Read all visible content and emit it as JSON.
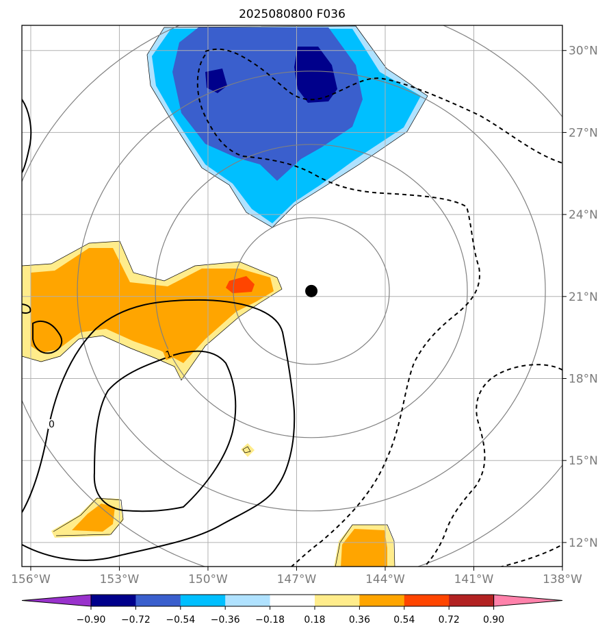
{
  "chart_data": {
    "type": "contour_map",
    "title": "2025080800 F036",
    "x_ticks": [
      "156°W",
      "153°W",
      "150°W",
      "147°W",
      "144°W",
      "141°W",
      "138°W"
    ],
    "y_ticks": [
      "30°N",
      "27°N",
      "24°N",
      "21°N",
      "18°N",
      "15°N",
      "12°N"
    ],
    "center_marker": {
      "lon": -146.5,
      "lat": 21.2
    },
    "range_rings": 4,
    "colorbar": {
      "ticks": [
        "−0.90",
        "−0.72",
        "−0.54",
        "−0.36",
        "−0.18",
        "0.18",
        "0.36",
        "0.54",
        "0.72",
        "0.90"
      ],
      "colors": [
        "#9932cc",
        "#00008b",
        "#3a5fcd",
        "#00bfff",
        "#b0e2ff",
        "#ffffff",
        "#ffec8b",
        "#ffa500",
        "#ff4500",
        "#b22222",
        "#ff82ab"
      ],
      "extend": "both"
    },
    "contour_labels": [
      "1",
      "0"
    ],
    "grid": true
  }
}
